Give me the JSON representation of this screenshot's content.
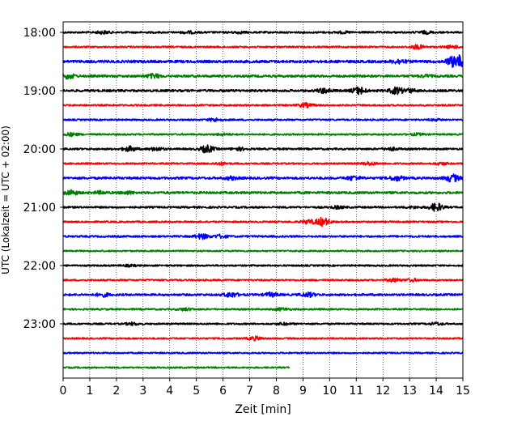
{
  "chart_data": {
    "type": "line",
    "title": "",
    "xlabel": "Zeit  [min]",
    "ylabel": "UTC (Lokalzeit = UTC + 02:00)",
    "xlim": [
      0,
      15
    ],
    "x_ticks": [
      0,
      1,
      2,
      3,
      4,
      5,
      6,
      7,
      8,
      9,
      10,
      11,
      12,
      13,
      14,
      15
    ],
    "x_grid": "vertical dotted",
    "y_tick_labels": [
      "18:00",
      "19:00",
      "20:00",
      "21:00",
      "22:00",
      "23:00"
    ],
    "trace_start": "18:00",
    "trace_interval_min": 15,
    "colors": [
      "#000000",
      "#ff0000",
      "#0000ff",
      "#008000"
    ],
    "traces": [
      {
        "start": "18:00",
        "color": "#000000",
        "end_min": 15,
        "amp": 0.25,
        "bursts": [
          [
            1.5,
            0.3
          ],
          [
            4.7,
            0.25
          ],
          [
            6.6,
            0.2
          ],
          [
            10.5,
            0.2
          ],
          [
            13.6,
            0.3
          ]
        ]
      },
      {
        "start": "18:15",
        "color": "#ff0000",
        "end_min": 15,
        "amp": 0.22,
        "bursts": [
          [
            13.3,
            0.5
          ],
          [
            14.6,
            0.35
          ]
        ]
      },
      {
        "start": "18:30",
        "color": "#0000ff",
        "end_min": 15,
        "amp": 0.35,
        "bursts": [
          [
            12.6,
            0.5
          ],
          [
            14.6,
            1.0
          ],
          [
            14.9,
            1.2
          ]
        ]
      },
      {
        "start": "18:45",
        "color": "#008000",
        "end_min": 15,
        "amp": 0.3,
        "bursts": [
          [
            0.2,
            0.6
          ],
          [
            3.4,
            0.5
          ],
          [
            13.6,
            0.25
          ]
        ]
      },
      {
        "start": "19:00",
        "color": "#000000",
        "end_min": 15,
        "amp": 0.3,
        "bursts": [
          [
            9.8,
            0.6
          ],
          [
            11.1,
            0.9
          ],
          [
            12.5,
            0.8
          ],
          [
            13.0,
            0.4
          ]
        ]
      },
      {
        "start": "19:15",
        "color": "#ff0000",
        "end_min": 15,
        "amp": 0.22,
        "bursts": [
          [
            9.1,
            0.5
          ]
        ]
      },
      {
        "start": "19:30",
        "color": "#0000ff",
        "end_min": 15,
        "amp": 0.22,
        "bursts": [
          [
            5.7,
            0.4
          ],
          [
            14.0,
            0.2
          ]
        ]
      },
      {
        "start": "19:45",
        "color": "#008000",
        "end_min": 15,
        "amp": 0.22,
        "bursts": [
          [
            0.3,
            0.4
          ],
          [
            6.0,
            0.2
          ],
          [
            13.3,
            0.25
          ]
        ]
      },
      {
        "start": "20:00",
        "color": "#000000",
        "end_min": 15,
        "amp": 0.25,
        "bursts": [
          [
            2.5,
            0.6
          ],
          [
            3.5,
            0.4
          ],
          [
            5.4,
            0.9
          ],
          [
            6.6,
            0.35
          ],
          [
            12.3,
            0.3
          ]
        ]
      },
      {
        "start": "20:15",
        "color": "#ff0000",
        "end_min": 15,
        "amp": 0.22,
        "bursts": [
          [
            5.9,
            0.3
          ],
          [
            11.5,
            0.4
          ],
          [
            14.2,
            0.3
          ]
        ]
      },
      {
        "start": "20:30",
        "color": "#0000ff",
        "end_min": 15,
        "amp": 0.3,
        "bursts": [
          [
            6.3,
            0.35
          ],
          [
            10.9,
            0.5
          ],
          [
            12.5,
            0.6
          ],
          [
            14.6,
            0.9
          ]
        ]
      },
      {
        "start": "20:45",
        "color": "#008000",
        "end_min": 15,
        "amp": 0.3,
        "bursts": [
          [
            0.3,
            0.6
          ],
          [
            1.4,
            0.3
          ],
          [
            2.4,
            0.3
          ]
        ]
      },
      {
        "start": "21:00",
        "color": "#000000",
        "end_min": 15,
        "amp": 0.25,
        "bursts": [
          [
            10.3,
            0.3
          ],
          [
            13.1,
            0.2
          ],
          [
            14.0,
            1.0
          ]
        ]
      },
      {
        "start": "21:15",
        "color": "#ff0000",
        "end_min": 15,
        "amp": 0.22,
        "bursts": [
          [
            9.2,
            0.5
          ],
          [
            9.75,
            1.1
          ]
        ]
      },
      {
        "start": "21:30",
        "color": "#0000ff",
        "end_min": 15,
        "amp": 0.25,
        "bursts": [
          [
            5.2,
            0.6
          ],
          [
            5.9,
            0.4
          ]
        ]
      },
      {
        "start": "21:45",
        "color": "#008000",
        "end_min": 15,
        "amp": 0.2,
        "bursts": []
      },
      {
        "start": "22:00",
        "color": "#000000",
        "end_min": 15,
        "amp": 0.22,
        "bursts": [
          [
            2.5,
            0.2
          ]
        ]
      },
      {
        "start": "22:15",
        "color": "#ff0000",
        "end_min": 15,
        "amp": 0.22,
        "bursts": [
          [
            12.4,
            0.4
          ],
          [
            13.1,
            0.3
          ]
        ]
      },
      {
        "start": "22:30",
        "color": "#0000ff",
        "end_min": 15,
        "amp": 0.28,
        "bursts": [
          [
            1.5,
            0.4
          ],
          [
            6.3,
            0.6
          ],
          [
            7.8,
            0.45
          ],
          [
            9.2,
            0.5
          ]
        ]
      },
      {
        "start": "22:45",
        "color": "#008000",
        "end_min": 15,
        "amp": 0.22,
        "bursts": [
          [
            4.6,
            0.3
          ],
          [
            8.2,
            0.3
          ]
        ]
      },
      {
        "start": "23:00",
        "color": "#000000",
        "end_min": 15,
        "amp": 0.22,
        "bursts": [
          [
            2.6,
            0.3
          ],
          [
            8.3,
            0.25
          ],
          [
            14.0,
            0.3
          ]
        ]
      },
      {
        "start": "23:15",
        "color": "#ff0000",
        "end_min": 15,
        "amp": 0.2,
        "bursts": [
          [
            7.2,
            0.45
          ]
        ]
      },
      {
        "start": "23:30",
        "color": "#0000ff",
        "end_min": 15,
        "amp": 0.2,
        "bursts": []
      },
      {
        "start": "23:45",
        "color": "#008000",
        "end_min": 8.5,
        "amp": 0.2,
        "bursts": []
      }
    ]
  }
}
